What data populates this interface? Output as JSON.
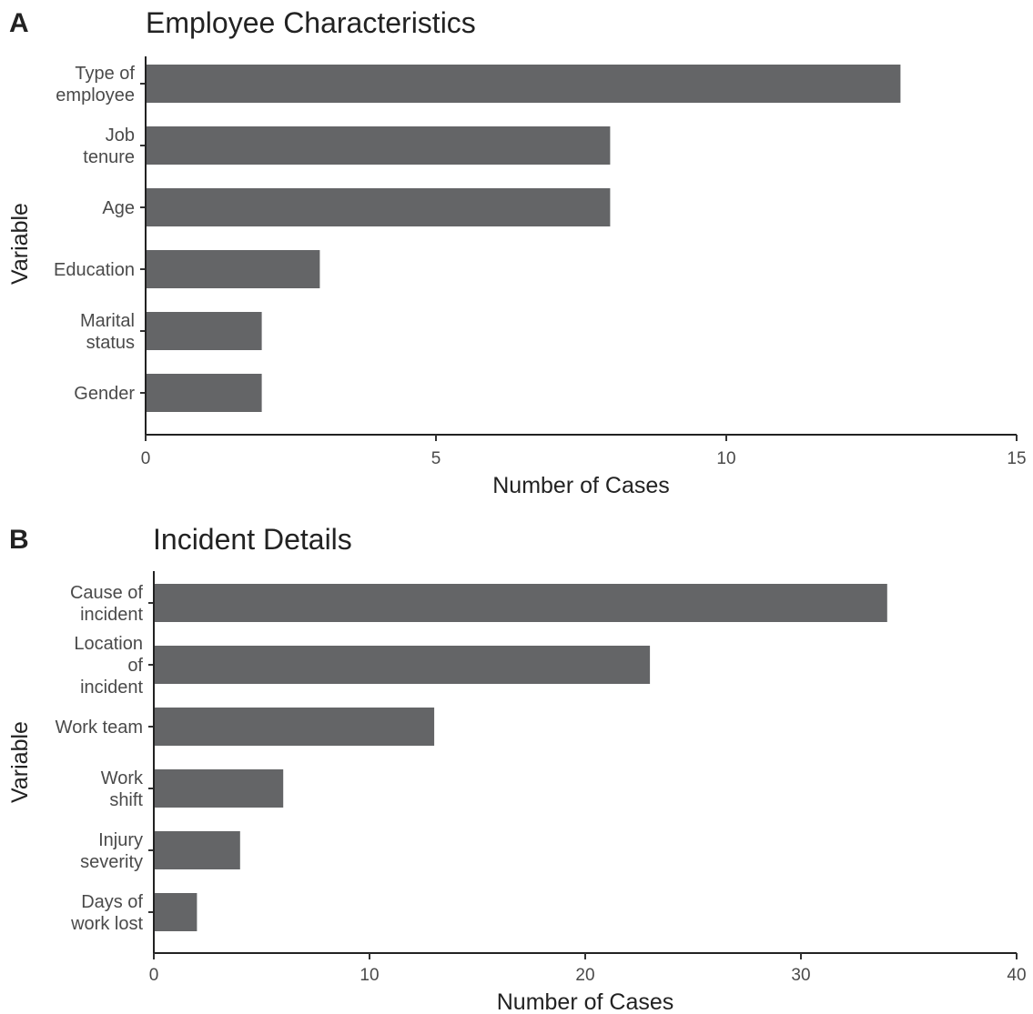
{
  "chart_data": [
    {
      "panel_letter": "A",
      "type": "bar",
      "orientation": "horizontal",
      "title": "Employee Characteristics",
      "xlabel": "Number of Cases",
      "ylabel": "Variable",
      "categories": [
        [
          "Type of",
          "employee"
        ],
        [
          "Job",
          "tenure"
        ],
        [
          "Age"
        ],
        [
          "Education"
        ],
        [
          "Marital",
          "status"
        ],
        [
          "Gender"
        ]
      ],
      "values": [
        13,
        8,
        8,
        3,
        2,
        2
      ],
      "xlim": [
        0,
        15
      ],
      "xticks": [
        0,
        5,
        10,
        15
      ],
      "xtick_labels": [
        "0",
        "5",
        "10",
        "15"
      ],
      "bar_color": "#646567",
      "grid": false
    },
    {
      "panel_letter": "B",
      "type": "bar",
      "orientation": "horizontal",
      "title": "Incident Details",
      "xlabel": "Number of Cases",
      "ylabel": "Variable",
      "categories": [
        [
          "Cause of",
          "incident"
        ],
        [
          "Location",
          "of",
          "incident"
        ],
        [
          "Work team"
        ],
        [
          "Work",
          "shift"
        ],
        [
          "Injury",
          "severity"
        ],
        [
          "Days of",
          "work lost"
        ]
      ],
      "values": [
        34,
        23,
        13,
        6,
        4,
        2
      ],
      "xlim": [
        0,
        40
      ],
      "xticks": [
        0,
        10,
        20,
        30,
        40
      ],
      "xtick_labels": [
        "0",
        "10",
        "20",
        "30",
        "40"
      ],
      "bar_color": "#646567",
      "grid": false
    }
  ]
}
